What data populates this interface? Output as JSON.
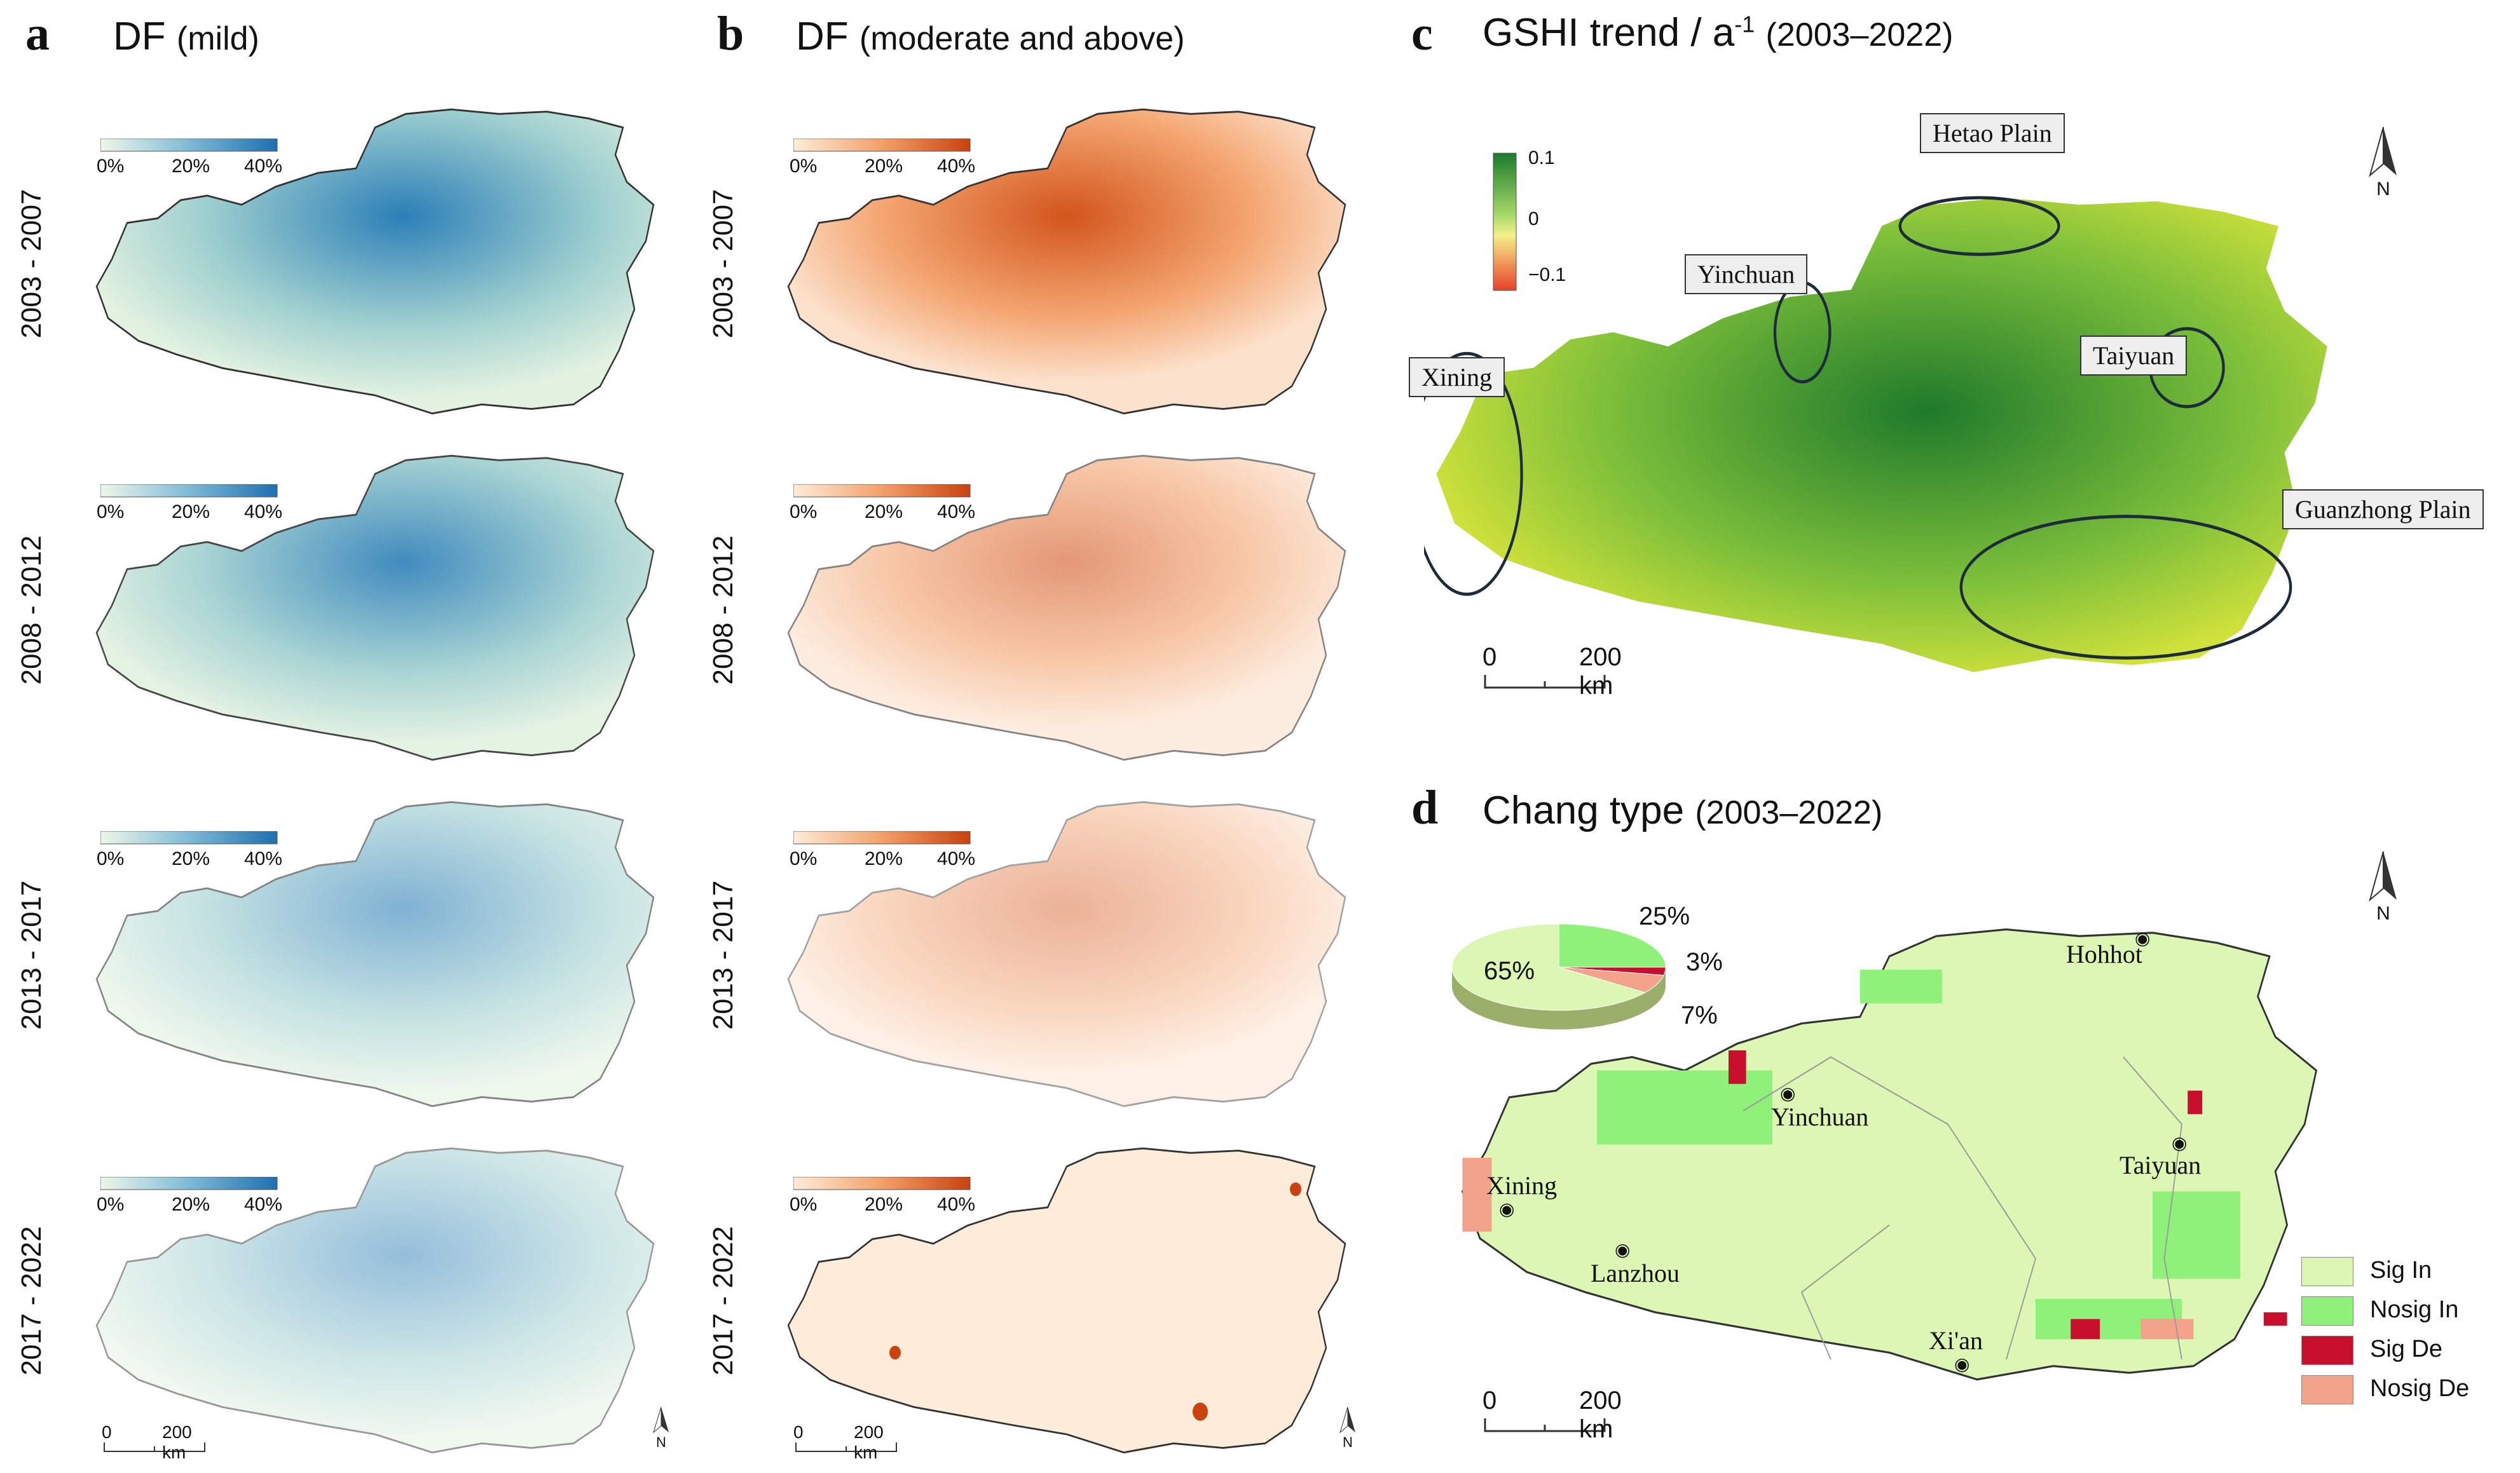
{
  "panel_a": {
    "letter": "a",
    "title": "DF",
    "subtitle": "(mild)",
    "legend_ticks": [
      "0%",
      "20%",
      "40%"
    ],
    "periods": [
      "2003 - 2007",
      "2008 - 2012",
      "2013 - 2017",
      "2017 - 2022"
    ],
    "scale_text": [
      "0",
      "200 km"
    ],
    "north": "N"
  },
  "panel_b": {
    "letter": "b",
    "title": "DF",
    "subtitle": "(moderate and above)",
    "legend_ticks": [
      "0%",
      "20%",
      "40%"
    ],
    "periods": [
      "2003 - 2007",
      "2008 - 2012",
      "2013 - 2017",
      "2017 - 2022"
    ],
    "scale_text": [
      "0",
      "200 km"
    ],
    "north": "N"
  },
  "panel_c": {
    "letter": "c",
    "title": "GSHI trend / a",
    "title_sup": "-1",
    "subtitle": "(2003–2022)",
    "legend_ticks": [
      "0.1",
      "0",
      "−0.1"
    ],
    "callouts": [
      "Hetao Plain",
      "Yinchuan",
      "Taiyuan",
      "Xining",
      "Guanzhong Plain"
    ],
    "scale_text": [
      "0",
      "200 km"
    ],
    "north": "N"
  },
  "panel_d": {
    "letter": "d",
    "title": "Chang type",
    "subtitle": "(2003–2022)",
    "cities": [
      "Hohhot",
      "Yinchuan",
      "Taiyuan",
      "Xining",
      "Lanzhou",
      "Xi'an"
    ],
    "legend": [
      "Sig In",
      "Nosig In",
      "Sig De",
      "Nosig De"
    ],
    "pie_labels": [
      "65%",
      "25%",
      "3%",
      "7%"
    ],
    "scale_text": [
      "0",
      "200 km"
    ],
    "north": "N"
  },
  "chart_data": {
    "type": "pie",
    "title": "Chang type (2003–2022)",
    "categories": [
      "Sig In",
      "Nosig In",
      "Sig De",
      "Nosig De"
    ],
    "values": [
      65,
      25,
      3,
      7
    ]
  },
  "colors": {
    "blue_low": "#eef7ea",
    "blue_high": "#1f6fb0",
    "orange_low": "#fdecda",
    "orange_high": "#c9420f",
    "green": "#1e7a2a",
    "yellow": "#e6e13a",
    "red": "#e8562a",
    "sig_in": "#dbf7b3",
    "nosig_in": "#8ff07a",
    "sig_de": "#c8102e",
    "nosig_de": "#f2a38a"
  }
}
